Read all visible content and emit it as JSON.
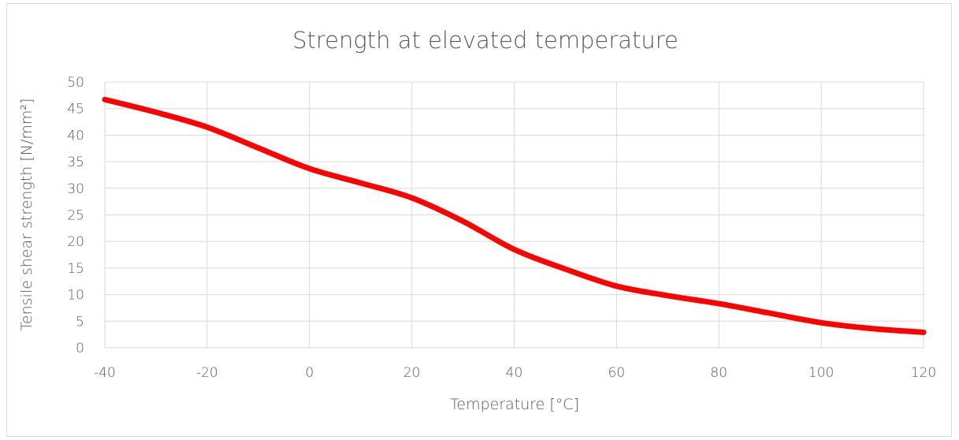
{
  "chart_data": {
    "type": "line",
    "title": "Strength at elevated temperature",
    "xlabel": "Temperature [°C]",
    "ylabel": "Tensile shear strength [N/mm²]",
    "xlim": [
      -40,
      120
    ],
    "ylim": [
      0,
      50
    ],
    "x_ticks": [
      -40,
      -20,
      0,
      20,
      40,
      60,
      80,
      100,
      120
    ],
    "y_ticks": [
      0,
      5,
      10,
      15,
      20,
      25,
      30,
      35,
      40,
      45,
      50
    ],
    "grid": true,
    "legend": "none",
    "series": [
      {
        "color": "#ff0000",
        "x": [
          -40,
          -30,
          -20,
          -10,
          0,
          10,
          20,
          30,
          40,
          50,
          60,
          70,
          80,
          90,
          100,
          110,
          120
        ],
        "y": [
          46.7,
          44.3,
          41.5,
          37.6,
          33.7,
          31.0,
          28.2,
          23.8,
          18.5,
          14.8,
          11.6,
          9.8,
          8.3,
          6.5,
          4.7,
          3.6,
          2.9
        ]
      }
    ]
  }
}
